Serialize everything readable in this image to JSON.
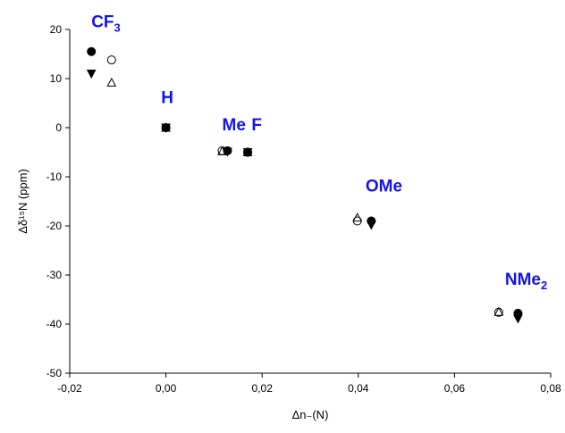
{
  "chart_data": {
    "type": "scatter",
    "title": "",
    "xlabel": "Δn₋(N)",
    "ylabel": "Δδ¹⁵N (ppm)",
    "xlim": [
      -0.02,
      0.08
    ],
    "ylim": [
      -50,
      20
    ],
    "x_ticks": [
      -0.02,
      0.0,
      0.02,
      0.04,
      0.06,
      0.08
    ],
    "x_tick_labels": [
      "-0,02",
      "0,00",
      "0,02",
      "0,04",
      "0,06",
      "0,08"
    ],
    "y_ticks": [
      -50,
      -40,
      -30,
      -20,
      -10,
      0,
      10,
      20
    ],
    "y_tick_labels": [
      "-50",
      "-40",
      "-30",
      "-20",
      "-10",
      "0",
      "10",
      "20"
    ],
    "grid": false,
    "label_color": "#1414e6",
    "series": [
      {
        "marker": "filled-circle",
        "points": [
          [
            -0.0155,
            15.5
          ],
          [
            0.0,
            0.0
          ],
          [
            0.0128,
            -4.7
          ],
          [
            0.017,
            -5.0
          ],
          [
            0.0427,
            -19.0
          ],
          [
            0.0732,
            -37.8
          ]
        ]
      },
      {
        "marker": "open-circle",
        "points": [
          [
            -0.0113,
            13.8
          ],
          [
            0.0,
            0.0
          ],
          [
            0.0117,
            -4.7
          ],
          [
            0.017,
            -5.0
          ],
          [
            0.0398,
            -19.0
          ],
          [
            0.0692,
            -37.6
          ]
        ]
      },
      {
        "marker": "filled-triangle-down",
        "points": [
          [
            -0.0155,
            11.0
          ],
          [
            0.0,
            0.0
          ],
          [
            0.0128,
            -4.9
          ],
          [
            0.017,
            -5.0
          ],
          [
            0.0427,
            -19.8
          ],
          [
            0.0732,
            -38.9
          ]
        ]
      },
      {
        "marker": "open-triangle-up",
        "points": [
          [
            -0.0113,
            9.2
          ],
          [
            0.0,
            0.0
          ],
          [
            0.0117,
            -4.8
          ],
          [
            0.017,
            -5.0
          ],
          [
            0.0398,
            -18.3
          ],
          [
            0.0692,
            -37.5
          ]
        ]
      }
    ],
    "substituent_labels": [
      {
        "main": "CF",
        "sub": "3",
        "x": -0.0155,
        "y": 20.5
      },
      {
        "main": "H",
        "sub": "",
        "x": -0.001,
        "y": 5.0
      },
      {
        "main": "Me",
        "sub": "",
        "x": 0.0117,
        "y": -0.5
      },
      {
        "main": "F",
        "sub": "",
        "x": 0.0178,
        "y": -0.5
      },
      {
        "main": "OMe",
        "sub": "",
        "x": 0.0415,
        "y": -13.0
      },
      {
        "main": "NMe",
        "sub": "2",
        "x": 0.0705,
        "y": -32.0
      }
    ]
  }
}
